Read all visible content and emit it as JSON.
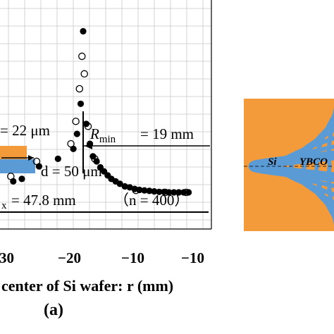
{
  "chart_data": {
    "type": "scatter",
    "x_tick_labels": [
      "30",
      "−20",
      "−10",
      "−10"
    ],
    "xlabel": "center of Si wafer: r (mm)",
    "panel_label": "(a)",
    "series": [
      {
        "marker": "filled",
        "points": [
          [
            -34.0,
            1.0
          ],
          [
            -29.8,
            1.1
          ],
          [
            -28.4,
            1.15
          ],
          [
            -25.6,
            1.4
          ],
          [
            -22.5,
            1.55
          ],
          [
            -20.0,
            1.75
          ],
          [
            -19.4,
            2.05
          ],
          [
            -18.8,
            2.65
          ],
          [
            -18.4,
            4.1
          ],
          [
            -17.9,
            2.25
          ],
          [
            -17.3,
            1.85
          ],
          [
            -16.8,
            1.6
          ],
          [
            -16.2,
            1.5
          ],
          [
            -15.6,
            1.38
          ],
          [
            -15.0,
            1.3
          ],
          [
            -14.4,
            1.22
          ],
          [
            -13.8,
            1.15
          ],
          [
            -13.1,
            1.1
          ],
          [
            -12.4,
            1.05
          ],
          [
            -11.6,
            1.0
          ],
          [
            -10.8,
            0.98
          ],
          [
            -10.0,
            0.95
          ],
          [
            -9.2,
            0.93
          ],
          [
            -8.4,
            0.92
          ],
          [
            -7.6,
            0.91
          ],
          [
            -6.8,
            0.9
          ],
          [
            -6.0,
            0.89
          ],
          [
            -5.2,
            0.89
          ],
          [
            -4.4,
            0.88
          ],
          [
            -3.6,
            0.88
          ],
          [
            -2.8,
            0.88
          ],
          [
            -2.0,
            0.88
          ],
          [
            -1.2,
            0.88
          ]
        ]
      },
      {
        "marker": "open",
        "points": [
          [
            -33.6,
            0.85
          ],
          [
            -33.4,
            0.58
          ],
          [
            -30.2,
            1.2
          ],
          [
            -26.0,
            1.5
          ],
          [
            -20.4,
            1.85
          ],
          [
            -19.6,
            2.3
          ],
          [
            -19.0,
            2.95
          ],
          [
            -18.6,
            3.6
          ],
          [
            -18.2,
            3.25
          ],
          [
            -17.6,
            2.2
          ],
          [
            -16.5,
            1.55
          ],
          [
            -9.8,
            0.92
          ],
          [
            -5.0,
            0.88
          ],
          [
            -1.6,
            0.88
          ]
        ]
      }
    ]
  },
  "annotations": {
    "thickness_label": "= 22 μm",
    "width_label": "d = 50 μm",
    "r_min_label": "R",
    "r_min_sub": "min",
    "r_min_value": "= 19 mm",
    "r_max_sub": "x",
    "r_max_value": "= 47.8 mm",
    "n_label": "（n = 400）"
  },
  "inset": {
    "label_si": "Si",
    "label_ybco": "YBCO",
    "colors": {
      "orange": "#f39a3a",
      "blue": "#5b9bd5"
    }
  }
}
